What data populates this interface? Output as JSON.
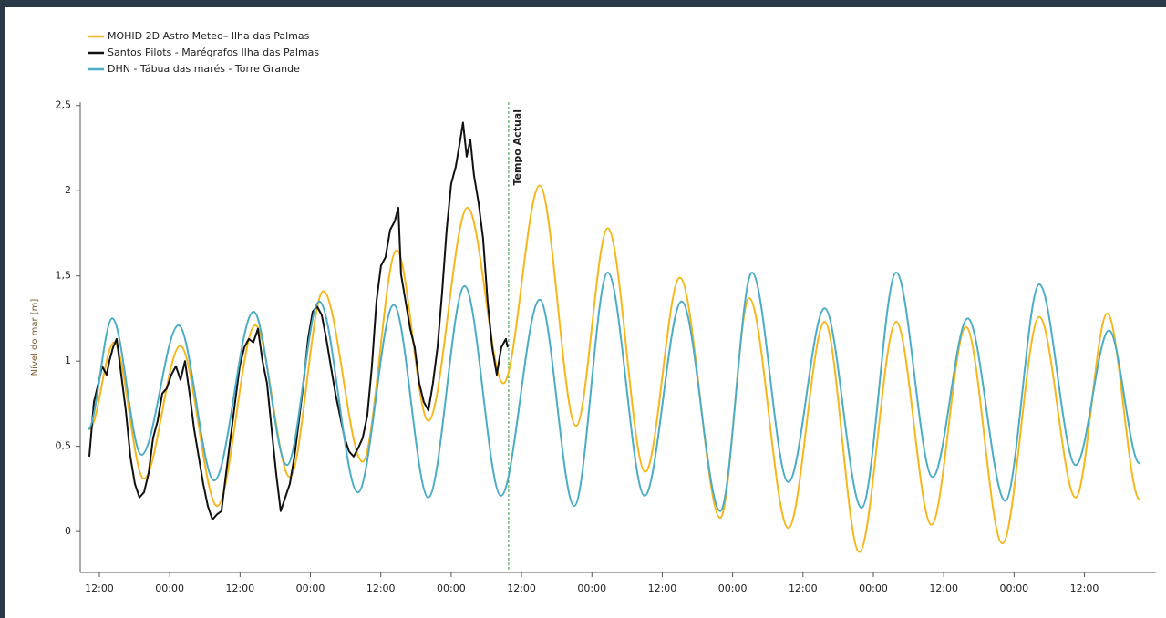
{
  "chart_data": {
    "type": "line",
    "ylabel": "Nível do mar [m]",
    "xlim": [
      -3.26,
      180.2
    ],
    "ylim": [
      -0.24,
      2.52
    ],
    "yticks": [
      {
        "value": 0,
        "label": "0"
      },
      {
        "value": 0.5,
        "label": "0,5"
      },
      1,
      {
        "value": 1.5,
        "label": "1,5"
      },
      2,
      {
        "value": 2.5,
        "label": "2,5"
      }
    ],
    "xticks": [
      {
        "value": 0,
        "label": "12:00"
      },
      {
        "value": 12,
        "label": "00:00"
      },
      {
        "value": 24,
        "label": "12:00"
      },
      {
        "value": 36,
        "label": "00:00"
      },
      {
        "value": 48,
        "label": "12:00"
      },
      {
        "value": 60,
        "label": "00:00"
      },
      {
        "value": 72,
        "label": "12:00"
      },
      {
        "value": 84,
        "label": "00:00"
      },
      {
        "value": 96,
        "label": "12:00"
      },
      {
        "value": 108,
        "label": "00:00"
      },
      {
        "value": 120,
        "label": "12:00"
      },
      {
        "value": 132,
        "label": "00:00"
      },
      {
        "value": 144,
        "label": "12:00"
      },
      {
        "value": 156,
        "label": "00:00"
      },
      {
        "value": 168,
        "label": "12:00"
      }
    ],
    "grid": false,
    "legend": "top-left",
    "annotations": [
      {
        "text": "Tempo Actual",
        "x": 69.8,
        "color": "#2e9e3a"
      }
    ],
    "series": [
      {
        "name": "MOHID 2D Astro Meteo– Ilha das Palmas",
        "color": "#f5b71b",
        "smooth": true,
        "x": [
          -1.7,
          2.5,
          7.6,
          13.8,
          20.1,
          26.6,
          32.5,
          38.2,
          44.9,
          50.7,
          56.1,
          62.8,
          68.9,
          75.1,
          81.3,
          86.7,
          93.1,
          99.0,
          105.9,
          110.8,
          117.5,
          123.7,
          129.6,
          135.9,
          141.9,
          147.8,
          154.0,
          160.3,
          166.5,
          171.9,
          177.4
        ],
        "values": [
          0.6,
          1.11,
          0.31,
          1.09,
          0.15,
          1.21,
          0.32,
          1.41,
          0.41,
          1.65,
          0.65,
          1.9,
          0.87,
          2.03,
          0.62,
          1.78,
          0.35,
          1.49,
          0.08,
          1.37,
          0.02,
          1.23,
          -0.12,
          1.23,
          0.04,
          1.2,
          -0.07,
          1.26,
          0.2,
          1.28,
          0.19
        ]
      },
      {
        "name": "Santos Pilots - Marégrafos Ilha das Palmas",
        "color": "#111111",
        "smooth": false,
        "x": [
          -1.71,
          -0.93,
          -0.16,
          0.47,
          1.24,
          1.71,
          2.33,
          2.95,
          3.73,
          4.51,
          5.29,
          6.06,
          6.84,
          7.62,
          8.39,
          9.17,
          9.95,
          10.73,
          11.5,
          12.28,
          13.06,
          13.84,
          14.61,
          15.39,
          16.17,
          16.94,
          17.72,
          18.5,
          19.28,
          20.05,
          20.83,
          21.61,
          22.38,
          23.16,
          23.94,
          24.72,
          25.49,
          26.27,
          27.05,
          27.83,
          28.6,
          29.38,
          30.16,
          30.93,
          31.71,
          32.49,
          33.27,
          34.04,
          34.82,
          35.6,
          36.38,
          37.15,
          37.93,
          38.71,
          39.48,
          40.26,
          41.04,
          41.82,
          42.59,
          43.37,
          44.15,
          44.92,
          45.7,
          46.48,
          47.26,
          48.03,
          48.81,
          49.59,
          50.37,
          50.99,
          51.45,
          52.23,
          53.01,
          53.79,
          54.56,
          55.34,
          56.12,
          56.89,
          57.67,
          58.45,
          59.23,
          60.0,
          60.78,
          61.56,
          62.02,
          62.65,
          63.27,
          63.89,
          64.67,
          65.44,
          66.22,
          67.0,
          67.78,
          68.55,
          69.33,
          69.64
        ],
        "values": [
          0.44,
          0.76,
          0.87,
          0.97,
          0.92,
          1.0,
          1.08,
          1.13,
          0.92,
          0.71,
          0.44,
          0.28,
          0.2,
          0.23,
          0.34,
          0.55,
          0.65,
          0.81,
          0.84,
          0.92,
          0.97,
          0.89,
          1.0,
          0.81,
          0.6,
          0.44,
          0.28,
          0.15,
          0.07,
          0.1,
          0.12,
          0.34,
          0.55,
          0.76,
          0.97,
          1.08,
          1.13,
          1.11,
          1.19,
          1.0,
          0.87,
          0.6,
          0.34,
          0.12,
          0.2,
          0.28,
          0.44,
          0.65,
          0.87,
          1.13,
          1.29,
          1.32,
          1.27,
          1.13,
          0.97,
          0.81,
          0.68,
          0.55,
          0.47,
          0.44,
          0.49,
          0.55,
          0.68,
          0.97,
          1.35,
          1.56,
          1.61,
          1.77,
          1.82,
          1.9,
          1.51,
          1.35,
          1.19,
          1.08,
          0.87,
          0.76,
          0.71,
          0.87,
          1.08,
          1.4,
          1.77,
          2.04,
          2.14,
          2.3,
          2.4,
          2.2,
          2.3,
          2.09,
          1.93,
          1.72,
          1.35,
          1.08,
          0.92,
          1.08,
          1.13,
          1.08
        ]
      },
      {
        "name": "DHN - Tábua das marés - Torre Grande",
        "color": "#4bacc6",
        "smooth": true,
        "x": [
          -1.9,
          2.2,
          7.2,
          13.5,
          19.6,
          26.3,
          32.0,
          37.5,
          44.1,
          50.2,
          56.1,
          62.3,
          68.5,
          75.1,
          81.0,
          86.7,
          93.0,
          99.3,
          105.9,
          111.3,
          117.5,
          123.7,
          130.0,
          135.9,
          142.1,
          148.1,
          154.5,
          160.3,
          166.5,
          172.2,
          177.4
        ],
        "values": [
          0.6,
          1.25,
          0.45,
          1.21,
          0.3,
          1.29,
          0.39,
          1.35,
          0.23,
          1.33,
          0.2,
          1.44,
          0.21,
          1.36,
          0.15,
          1.52,
          0.21,
          1.35,
          0.12,
          1.52,
          0.29,
          1.31,
          0.14,
          1.52,
          0.32,
          1.25,
          0.18,
          1.45,
          0.39,
          1.18,
          0.4
        ]
      }
    ]
  }
}
